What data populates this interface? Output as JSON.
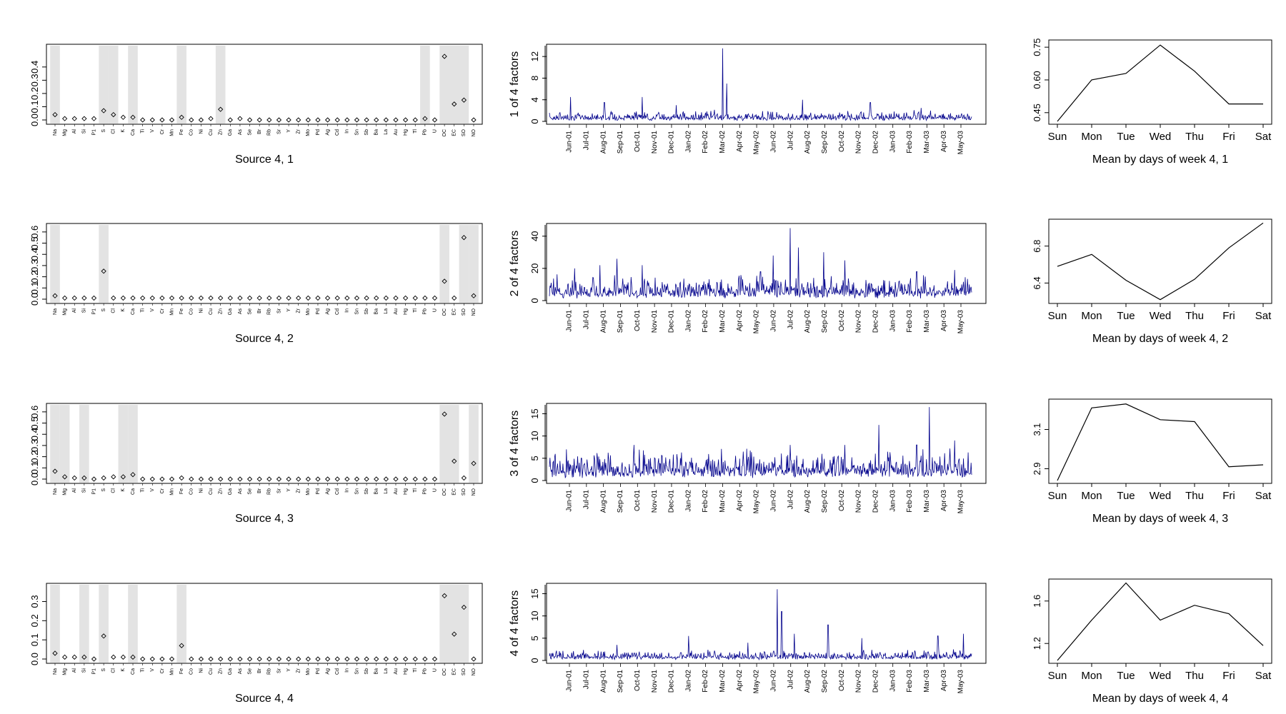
{
  "chart_data": [
    {
      "type": "scatter",
      "panel": "profile",
      "title": "Source 4, 1",
      "categories": [
        "Na",
        "Mg",
        "Al",
        "Si",
        "P1",
        "S",
        "Cl",
        "K",
        "Ca",
        "Ti",
        "V",
        "Cr",
        "Mn",
        "Fe",
        "Co",
        "Ni",
        "Cu",
        "Zn",
        "Ga",
        "As",
        "Se",
        "Br",
        "Rb",
        "Sr",
        "Y",
        "Zr",
        "Mo",
        "Pd",
        "Ag",
        "Cd",
        "In",
        "Sn",
        "Sb",
        "Ba",
        "La",
        "Au",
        "Hg",
        "Tl",
        "Pb",
        "U",
        "OC",
        "EC",
        "SO",
        "NO"
      ],
      "values": [
        0.04,
        0.01,
        0.01,
        0.01,
        0.01,
        0.07,
        0.04,
        0.02,
        0.02,
        0.0,
        0.0,
        0.0,
        0.0,
        0.02,
        0.0,
        0.0,
        0.01,
        0.08,
        0.0,
        0.01,
        0.0,
        0.0,
        0.0,
        0.0,
        0.0,
        0.0,
        0.0,
        0.0,
        0.0,
        0.0,
        0.0,
        0.0,
        0.0,
        0.0,
        0.0,
        0.0,
        0.0,
        0.0,
        0.01,
        0.0,
        0.48,
        0.12,
        0.15,
        0.0
      ],
      "shaded": [
        "Na",
        "S",
        "Cl",
        "Ca",
        "Fe",
        "Zn",
        "Pb",
        "OC",
        "EC",
        "SO"
      ],
      "ylim": [
        0,
        0.55
      ],
      "yticks": [
        "0.0",
        "0.1",
        "0.2",
        "0.3",
        "0.4"
      ]
    },
    {
      "type": "scatter",
      "panel": "profile",
      "title": "Source 4, 2",
      "categories": [
        "Na",
        "Mg",
        "Al",
        "Si",
        "P1",
        "S",
        "Cl",
        "K",
        "Ca",
        "Ti",
        "V",
        "Cr",
        "Mn",
        "Fe",
        "Co",
        "Ni",
        "Cu",
        "Zn",
        "Ga",
        "As",
        "Se",
        "Br",
        "Rb",
        "Sr",
        "Y",
        "Zr",
        "Mo",
        "Pd",
        "Ag",
        "Cd",
        "In",
        "Sn",
        "Sb",
        "Ba",
        "La",
        "Au",
        "Hg",
        "Tl",
        "Pb",
        "U",
        "OC",
        "EC",
        "SO",
        "NO"
      ],
      "values": [
        0.03,
        0.01,
        0.01,
        0.01,
        0.01,
        0.25,
        0.01,
        0.01,
        0.01,
        0.01,
        0.01,
        0.01,
        0.01,
        0.01,
        0.01,
        0.01,
        0.01,
        0.01,
        0.01,
        0.01,
        0.01,
        0.01,
        0.01,
        0.01,
        0.01,
        0.01,
        0.01,
        0.01,
        0.01,
        0.01,
        0.01,
        0.01,
        0.01,
        0.01,
        0.01,
        0.01,
        0.01,
        0.01,
        0.01,
        0.01,
        0.16,
        0.01,
        0.55,
        0.03
      ],
      "shaded": [
        "Na",
        "S",
        "OC",
        "SO",
        "NO"
      ],
      "ylim": [
        0,
        0.65
      ],
      "yticks": [
        "0.0",
        "0.1",
        "0.2",
        "0.3",
        "0.4",
        "0.5",
        "0.6"
      ]
    },
    {
      "type": "scatter",
      "panel": "profile",
      "title": "Source 4, 3",
      "categories": [
        "Na",
        "Mg",
        "Al",
        "Si",
        "P1",
        "S",
        "Cl",
        "K",
        "Ca",
        "Ti",
        "V",
        "Cr",
        "Mn",
        "Fe",
        "Co",
        "Ni",
        "Cu",
        "Zn",
        "Ga",
        "As",
        "Se",
        "Br",
        "Rb",
        "Sr",
        "Y",
        "Zr",
        "Mo",
        "Pd",
        "Ag",
        "Cd",
        "In",
        "Sn",
        "Sb",
        "Ba",
        "La",
        "Au",
        "Hg",
        "Tl",
        "Pb",
        "U",
        "OC",
        "EC",
        "SO",
        "NO"
      ],
      "values": [
        0.07,
        0.02,
        0.01,
        0.01,
        0.0,
        0.01,
        0.02,
        0.02,
        0.04,
        0.0,
        0.0,
        0.0,
        0.0,
        0.01,
        0.0,
        0.0,
        0.0,
        0.0,
        0.0,
        0.0,
        0.0,
        0.0,
        0.0,
        0.0,
        0.0,
        0.0,
        0.0,
        0.0,
        0.0,
        0.0,
        0.0,
        0.0,
        0.0,
        0.0,
        0.0,
        0.0,
        0.0,
        0.0,
        0.0,
        0.0,
        0.58,
        0.16,
        0.01,
        0.14
      ],
      "shaded": [
        "Na",
        "Mg",
        "Si",
        "K",
        "Ca",
        "OC",
        "EC",
        "NO"
      ],
      "ylim": [
        0,
        0.65
      ],
      "yticks": [
        "0.0",
        "0.1",
        "0.2",
        "0.3",
        "0.4",
        "0.5",
        "0.6"
      ]
    },
    {
      "type": "scatter",
      "panel": "profile",
      "title": "Source 4, 4",
      "categories": [
        "Na",
        "Mg",
        "Al",
        "Si",
        "P1",
        "S",
        "Cl",
        "K",
        "Ca",
        "Ti",
        "V",
        "Cr",
        "Mn",
        "Fe",
        "Co",
        "Ni",
        "Cu",
        "Zn",
        "Ga",
        "As",
        "Se",
        "Br",
        "Rb",
        "Sr",
        "Y",
        "Zr",
        "Mo",
        "Pd",
        "Ag",
        "Cd",
        "In",
        "Sn",
        "Sb",
        "Ba",
        "La",
        "Au",
        "Hg",
        "Tl",
        "Pb",
        "U",
        "OC",
        "EC",
        "SO",
        "NO"
      ],
      "values": [
        0.03,
        0.01,
        0.01,
        0.01,
        0.0,
        0.12,
        0.01,
        0.01,
        0.01,
        0.0,
        0.0,
        0.0,
        0.0,
        0.07,
        0.0,
        0.0,
        0.0,
        0.0,
        0.0,
        0.0,
        0.0,
        0.0,
        0.0,
        0.0,
        0.0,
        0.0,
        0.0,
        0.0,
        0.0,
        0.0,
        0.0,
        0.0,
        0.0,
        0.0,
        0.0,
        0.0,
        0.0,
        0.0,
        0.0,
        0.0,
        0.33,
        0.13,
        0.27,
        0.0
      ],
      "shaded": [
        "Na",
        "Si",
        "S",
        "Ca",
        "Fe",
        "OC",
        "EC",
        "SO"
      ],
      "ylim": [
        0,
        0.38
      ],
      "yticks": [
        "0.0",
        "0.1",
        "0.2",
        "0.3"
      ]
    },
    {
      "type": "line",
      "panel": "timeseries",
      "ylabel": "1 of 4 factors",
      "x": [
        "Jun-01",
        "Jul-01",
        "Aug-01",
        "Sep-01",
        "Oct-01",
        "Nov-01",
        "Dec-01",
        "Jan-02",
        "Feb-02",
        "Mar-02",
        "Apr-02",
        "May-02",
        "Jun-02",
        "Jul-02",
        "Aug-02",
        "Sep-02",
        "Oct-02",
        "Nov-02",
        "Dec-02",
        "Jan-03",
        "Feb-03",
        "Mar-03",
        "Apr-03",
        "May-03"
      ],
      "base": 1.0,
      "spikes": [
        [
          0.05,
          4.5
        ],
        [
          0.13,
          3.5
        ],
        [
          0.22,
          4.5
        ],
        [
          0.3,
          3.0
        ],
        [
          0.41,
          13.5
        ],
        [
          0.42,
          7.0
        ],
        [
          0.6,
          4.0
        ],
        [
          0.76,
          3.5
        ],
        [
          0.88,
          2.5
        ]
      ],
      "ylim": [
        0,
        14
      ],
      "yticks": [
        "0",
        "4",
        "8",
        "12"
      ],
      "color": "#00008B"
    },
    {
      "type": "line",
      "panel": "timeseries",
      "ylabel": "2 of 4 factors",
      "x": [
        "Jun-01",
        "Jul-01",
        "Aug-01",
        "Sep-01",
        "Oct-01",
        "Nov-01",
        "Dec-01",
        "Jan-02",
        "Feb-02",
        "Mar-02",
        "Apr-02",
        "May-02",
        "Jun-02",
        "Jul-02",
        "Aug-02",
        "Sep-02",
        "Oct-02",
        "Nov-02",
        "Dec-02",
        "Jan-03",
        "Feb-03",
        "Mar-03",
        "Apr-03",
        "May-03"
      ],
      "base": 8.0,
      "spikes": [
        [
          0.06,
          20
        ],
        [
          0.12,
          22
        ],
        [
          0.16,
          26
        ],
        [
          0.22,
          22
        ],
        [
          0.5,
          18
        ],
        [
          0.53,
          28
        ],
        [
          0.57,
          45
        ],
        [
          0.59,
          33
        ],
        [
          0.65,
          30
        ],
        [
          0.7,
          25
        ],
        [
          0.87,
          18
        ],
        [
          0.96,
          19
        ]
      ],
      "ylim": [
        0,
        47
      ],
      "yticks": [
        "0",
        "20",
        "40"
      ],
      "color": "#00008B"
    },
    {
      "type": "line",
      "panel": "timeseries",
      "ylabel": "3 of 4 factors",
      "x": [
        "Jun-01",
        "Jul-01",
        "Aug-01",
        "Sep-01",
        "Oct-01",
        "Nov-01",
        "Dec-01",
        "Jan-02",
        "Feb-02",
        "Mar-02",
        "Apr-02",
        "May-02",
        "Jun-02",
        "Jul-02",
        "Aug-02",
        "Sep-02",
        "Oct-02",
        "Nov-02",
        "Dec-02",
        "Jan-03",
        "Feb-03",
        "Mar-03",
        "Apr-03",
        "May-03"
      ],
      "base": 3.5,
      "spikes": [
        [
          0.04,
          7
        ],
        [
          0.2,
          8
        ],
        [
          0.57,
          8
        ],
        [
          0.7,
          8
        ],
        [
          0.78,
          12.5
        ],
        [
          0.87,
          8
        ],
        [
          0.9,
          16.5
        ],
        [
          0.96,
          9
        ]
      ],
      "ylim": [
        0,
        17
      ],
      "yticks": [
        "0",
        "5",
        "10",
        "15"
      ],
      "color": "#00008B"
    },
    {
      "type": "line",
      "panel": "timeseries",
      "ylabel": "4 of 4 factors",
      "x": [
        "Jun-01",
        "Jul-01",
        "Aug-01",
        "Sep-01",
        "Oct-01",
        "Nov-01",
        "Dec-01",
        "Jan-02",
        "Feb-02",
        "Mar-02",
        "Apr-02",
        "May-02",
        "Jun-02",
        "Jul-02",
        "Aug-02",
        "Sep-02",
        "Oct-02",
        "Nov-02",
        "Dec-02",
        "Jan-03",
        "Feb-03",
        "Mar-03",
        "Apr-03",
        "May-03"
      ],
      "base": 1.2,
      "spikes": [
        [
          0.16,
          3.5
        ],
        [
          0.33,
          5.5
        ],
        [
          0.47,
          4
        ],
        [
          0.54,
          16
        ],
        [
          0.55,
          11
        ],
        [
          0.58,
          6
        ],
        [
          0.66,
          8
        ],
        [
          0.74,
          5
        ],
        [
          0.92,
          5.5
        ],
        [
          0.98,
          6
        ]
      ],
      "ylim": [
        0,
        17
      ],
      "yticks": [
        "0",
        "5",
        "10",
        "15"
      ],
      "color": "#00008B"
    },
    {
      "type": "line",
      "panel": "weekday",
      "title": "Mean by days of week 4, 1",
      "categories": [
        "Sun",
        "Mon",
        "Tue",
        "Wed",
        "Thu",
        "Fri",
        "Sat"
      ],
      "values": [
        0.41,
        0.6,
        0.63,
        0.76,
        0.64,
        0.49,
        0.49
      ],
      "ylim": [
        0.41,
        0.77
      ],
      "yticks": [
        "0.45",
        "0.60",
        "0.75"
      ]
    },
    {
      "type": "line",
      "panel": "weekday",
      "title": "Mean by days of week 4, 2",
      "categories": [
        "Sun",
        "Mon",
        "Tue",
        "Wed",
        "Thu",
        "Fri",
        "Sat"
      ],
      "values": [
        6.58,
        6.71,
        6.43,
        6.22,
        6.44,
        6.78,
        7.05
      ],
      "ylim": [
        6.21,
        7.06
      ],
      "yticks": [
        "6.4",
        "6.8"
      ]
    },
    {
      "type": "line",
      "panel": "weekday",
      "title": "Mean by days of week 4, 3",
      "categories": [
        "Sun",
        "Mon",
        "Tue",
        "Wed",
        "Thu",
        "Fri",
        "Sat"
      ],
      "values": [
        2.84,
        3.21,
        3.23,
        3.15,
        3.14,
        2.91,
        2.92
      ],
      "ylim": [
        2.84,
        3.24
      ],
      "yticks": [
        "2.9",
        "3.1"
      ]
    },
    {
      "type": "line",
      "panel": "weekday",
      "title": "Mean by days of week 4, 4",
      "categories": [
        "Sun",
        "Mon",
        "Tue",
        "Wed",
        "Thu",
        "Fri",
        "Sat"
      ],
      "values": [
        1.04,
        1.42,
        1.77,
        1.42,
        1.56,
        1.48,
        1.18
      ],
      "ylim": [
        1.04,
        1.78
      ],
      "yticks": [
        "1.2",
        "1.6"
      ]
    }
  ]
}
